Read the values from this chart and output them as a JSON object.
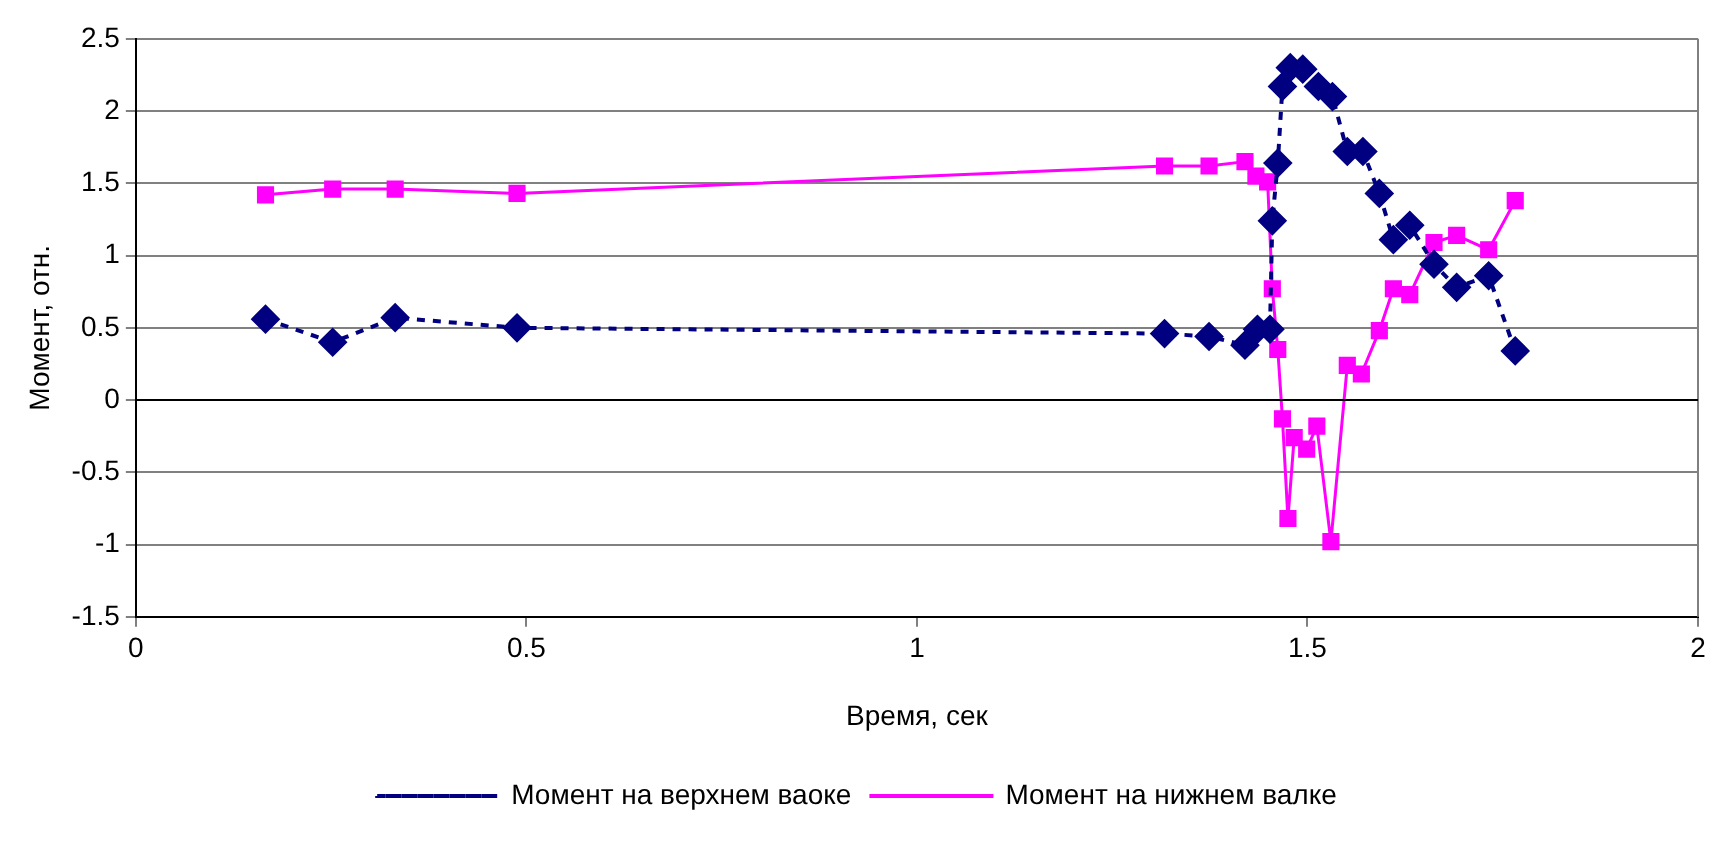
{
  "chart_data": {
    "type": "line",
    "xlabel": "Время, сек",
    "ylabel": "Момент, отн.",
    "xlim": [
      0,
      2
    ],
    "xticks": [
      0,
      0.5,
      1,
      1.5,
      2
    ],
    "ylim": [
      -1.5,
      2.5
    ],
    "yticks": [
      -1.5,
      -1,
      -0.5,
      0,
      0.5,
      1,
      1.5,
      2,
      2.5
    ],
    "grid": "y",
    "legend": "bottom",
    "series": [
      {
        "name": "Момент на верхнем ваоке",
        "color": "#000080",
        "marker": "diamond",
        "line_style": "dashed",
        "x": [
          0.166,
          0.252,
          0.332,
          0.488,
          1.317,
          1.374,
          1.42,
          1.436,
          1.452,
          1.455,
          1.462,
          1.468,
          1.478,
          1.494,
          1.514,
          1.532,
          1.551,
          1.571,
          1.592,
          1.61,
          1.631,
          1.662,
          1.691,
          1.732,
          1.766
        ],
        "values": [
          0.56,
          0.4,
          0.57,
          0.5,
          0.46,
          0.44,
          0.38,
          0.49,
          0.49,
          1.24,
          1.64,
          2.17,
          2.3,
          2.29,
          2.17,
          2.1,
          1.72,
          1.72,
          1.43,
          1.11,
          1.21,
          0.94,
          0.78,
          0.86,
          0.34
        ]
      },
      {
        "name": "Момент на нижнем валке",
        "color": "#ff00ff",
        "marker": "square",
        "line_style": "solid",
        "x": [
          0.166,
          0.252,
          0.332,
          0.488,
          1.317,
          1.374,
          1.42,
          1.434,
          1.449,
          1.455,
          1.462,
          1.468,
          1.475,
          1.483,
          1.499,
          1.512,
          1.53,
          1.551,
          1.569,
          1.592,
          1.61,
          1.631,
          1.662,
          1.691,
          1.732,
          1.766
        ],
        "values": [
          1.42,
          1.46,
          1.46,
          1.43,
          1.62,
          1.62,
          1.65,
          1.55,
          1.51,
          0.77,
          0.35,
          -0.13,
          -0.82,
          -0.26,
          -0.34,
          -0.18,
          -0.98,
          0.24,
          0.18,
          0.48,
          0.77,
          0.73,
          1.09,
          1.14,
          1.04,
          1.38
        ]
      }
    ]
  }
}
